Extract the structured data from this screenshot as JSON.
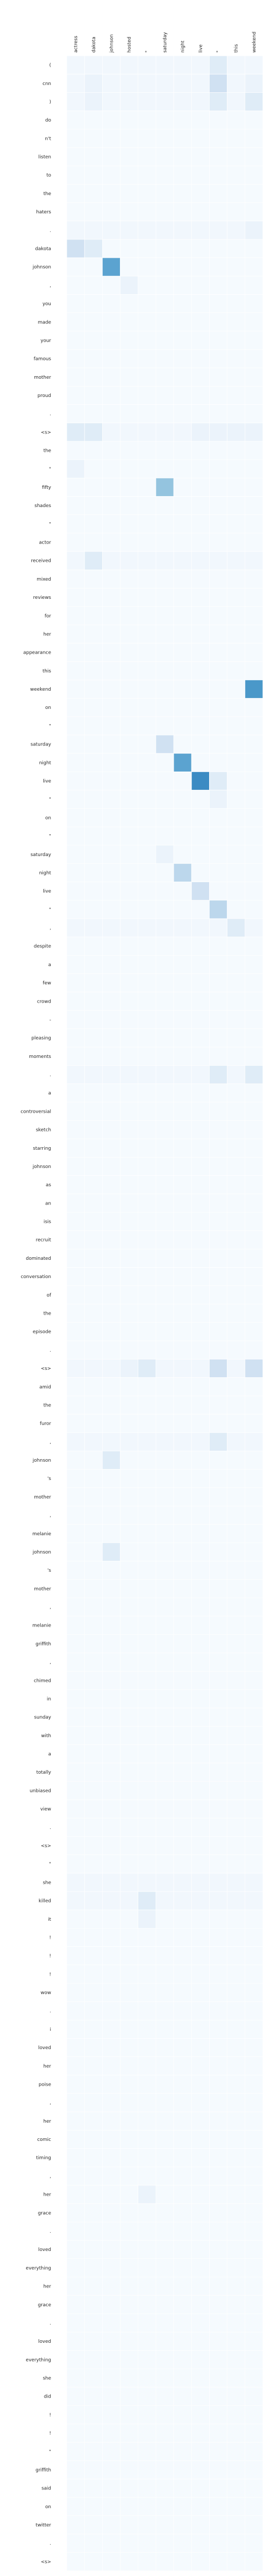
{
  "chart_data": {
    "type": "heatmap",
    "title": "",
    "xlabel": "",
    "ylabel": "",
    "colormap": "Blues",
    "value_range": [
      0,
      1
    ],
    "colors": {
      "low": "#f7fbff",
      "high": "#08306b",
      "grid": "#ffffff",
      "text": "#262626"
    },
    "x_labels": [
      "actress",
      "dakota",
      "johnson",
      "hosted",
      "\"",
      "saturday",
      "night",
      "live",
      "\"",
      "this",
      "weekend"
    ],
    "y_labels": [
      "(",
      "cnn",
      ")",
      "do",
      "n't",
      "listen",
      "to",
      "the",
      "haters",
      ".",
      "dakota",
      "johnson",
      ",",
      "you",
      "made",
      "your",
      "famous",
      "mother",
      "proud",
      ".",
      "<s>",
      "the",
      "\"",
      "fifty",
      "shades",
      "\"",
      "actor",
      "received",
      "mixed",
      "reviews",
      "for",
      "her",
      "appearance",
      "this",
      "weekend",
      "on",
      "\"",
      "saturday",
      "night",
      "live",
      "\"",
      "on",
      "\"",
      "saturday",
      "night",
      "live",
      "\"",
      ",",
      "despite",
      "a",
      "few",
      "crowd",
      "-",
      "pleasing",
      "moments",
      ".",
      "a",
      "controversial",
      "sketch",
      "starring",
      "johnson",
      "as",
      "an",
      "isis",
      "recruit",
      "dominated",
      "conversation",
      "of",
      "the",
      "episode",
      ".",
      "<s>",
      "amid",
      "the",
      "furor",
      ",",
      "johnson",
      "'s",
      "mother",
      ",",
      "melanie",
      "johnson",
      "'s",
      "mother",
      ",",
      "melanie",
      "griffith",
      ",",
      "chimed",
      "in",
      "sunday",
      "with",
      "a",
      "totally",
      "unbiased",
      "view",
      ".",
      "<s>",
      "\"",
      "she",
      "killed",
      "it",
      "!",
      "!",
      "!",
      "wow",
      ".",
      "i",
      "loved",
      "her",
      "poise",
      ",",
      "her",
      "comic",
      "timing",
      ",",
      "her",
      "grace",
      ".",
      "loved",
      "everything",
      "her",
      "grace",
      ".",
      "loved",
      "everything",
      "she",
      "did",
      "!",
      "!",
      "\"",
      "griffith",
      "said",
      "on",
      "twitter",
      ".",
      "<s>"
    ],
    "hot_cells": [
      {
        "row": 0,
        "col": 8,
        "value": 0.12
      },
      {
        "row": 1,
        "col": 1,
        "value": 0.06
      },
      {
        "row": 1,
        "col": 8,
        "value": 0.2
      },
      {
        "row": 1,
        "col": 10,
        "value": 0.06
      },
      {
        "row": 2,
        "col": 1,
        "value": 0.06
      },
      {
        "row": 2,
        "col": 8,
        "value": 0.12
      },
      {
        "row": 2,
        "col": 10,
        "value": 0.12
      },
      {
        "row": 9,
        "col": 10,
        "value": 0.06
      },
      {
        "row": 10,
        "col": 0,
        "value": 0.2
      },
      {
        "row": 10,
        "col": 1,
        "value": 0.12
      },
      {
        "row": 11,
        "col": 2,
        "value": 0.55
      },
      {
        "row": 12,
        "col": 3,
        "value": 0.06
      },
      {
        "row": 20,
        "col": 0,
        "value": 0.12
      },
      {
        "row": 20,
        "col": 1,
        "value": 0.12
      },
      {
        "row": 20,
        "col": 7,
        "value": 0.06
      },
      {
        "row": 20,
        "col": 8,
        "value": 0.06
      },
      {
        "row": 20,
        "col": 9,
        "value": 0.06
      },
      {
        "row": 20,
        "col": 10,
        "value": 0.06
      },
      {
        "row": 22,
        "col": 0,
        "value": 0.06
      },
      {
        "row": 23,
        "col": 5,
        "value": 0.4
      },
      {
        "row": 27,
        "col": 1,
        "value": 0.12
      },
      {
        "row": 34,
        "col": 10,
        "value": 0.6
      },
      {
        "row": 37,
        "col": 5,
        "value": 0.2
      },
      {
        "row": 38,
        "col": 6,
        "value": 0.55
      },
      {
        "row": 39,
        "col": 7,
        "value": 0.65
      },
      {
        "row": 39,
        "col": 8,
        "value": 0.12
      },
      {
        "row": 40,
        "col": 8,
        "value": 0.06
      },
      {
        "row": 43,
        "col": 5,
        "value": 0.06
      },
      {
        "row": 44,
        "col": 6,
        "value": 0.28
      },
      {
        "row": 45,
        "col": 7,
        "value": 0.2
      },
      {
        "row": 46,
        "col": 8,
        "value": 0.28
      },
      {
        "row": 47,
        "col": 9,
        "value": 0.12
      },
      {
        "row": 55,
        "col": 8,
        "value": 0.12
      },
      {
        "row": 55,
        "col": 10,
        "value": 0.12
      },
      {
        "row": 71,
        "col": 3,
        "value": 0.06
      },
      {
        "row": 71,
        "col": 4,
        "value": 0.12
      },
      {
        "row": 71,
        "col": 8,
        "value": 0.2
      },
      {
        "row": 71,
        "col": 10,
        "value": 0.2
      },
      {
        "row": 75,
        "col": 8,
        "value": 0.12
      },
      {
        "row": 76,
        "col": 2,
        "value": 0.12
      },
      {
        "row": 81,
        "col": 2,
        "value": 0.12
      },
      {
        "row": 100,
        "col": 4,
        "value": 0.12
      },
      {
        "row": 101,
        "col": 4,
        "value": 0.06
      },
      {
        "row": 116,
        "col": 4,
        "value": 0.06
      }
    ],
    "warm_rows": [
      0,
      1,
      2,
      9,
      20,
      27,
      47,
      55,
      71,
      75,
      99,
      100
    ]
  }
}
